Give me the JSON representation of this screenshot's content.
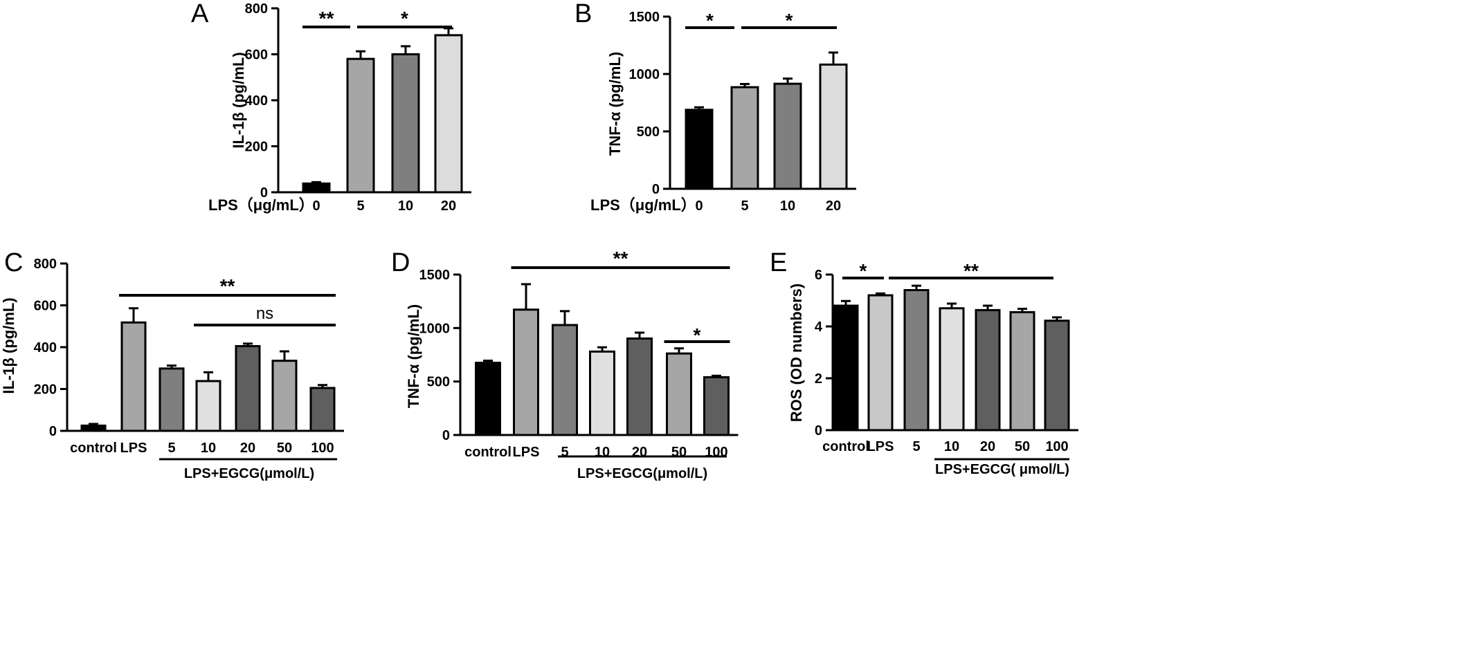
{
  "chart_data": [
    {
      "panel": "A",
      "type": "bar",
      "categories": [
        "0",
        "5",
        "10",
        "20"
      ],
      "values": [
        38,
        580,
        600,
        683
      ],
      "errors": [
        6,
        33,
        35,
        30
      ],
      "colors": [
        "#000000",
        "#a6a6a6",
        "#7f7f7f",
        "#dcdcdc"
      ],
      "ylabel": "IL-1β (pg/mL)",
      "ylim": [
        0,
        800
      ],
      "yticks": [
        "0",
        "200",
        "400",
        "600",
        "800"
      ],
      "xtitle": "LPS（μg/mL）",
      "significance": [
        {
          "label": "**",
          "from": 0,
          "to": 1
        },
        {
          "label": "*",
          "from": 1,
          "to": 3
        }
      ]
    },
    {
      "panel": "B",
      "type": "bar",
      "categories": [
        "0",
        "5",
        "10",
        "20"
      ],
      "values": [
        688,
        885,
        915,
        1082
      ],
      "errors": [
        22,
        28,
        45,
        105
      ],
      "colors": [
        "#000000",
        "#a6a6a6",
        "#7f7f7f",
        "#dcdcdc"
      ],
      "ylabel": "TNF-α (pg/mL)",
      "ylim": [
        0,
        1500
      ],
      "yticks": [
        "0",
        "500",
        "1000",
        "1500"
      ],
      "xtitle": "LPS（μg/mL）",
      "significance": [
        {
          "label": "*",
          "from": 0,
          "to": 1
        },
        {
          "label": "*",
          "from": 1,
          "to": 3
        }
      ]
    },
    {
      "panel": "C",
      "type": "bar",
      "categories": [
        "control",
        "LPS",
        "5",
        "10",
        "20",
        "50",
        "100"
      ],
      "values": [
        25,
        518,
        298,
        238,
        405,
        335,
        205
      ],
      "errors": [
        8,
        68,
        14,
        42,
        12,
        45,
        14
      ],
      "colors": [
        "#000000",
        "#a6a6a6",
        "#7f7f7f",
        "#e0e0e0",
        "#5f5f5f",
        "#a6a6a6",
        "#5f5f5f"
      ],
      "ylabel": "IL-1β (pg/mL)",
      "ylim": [
        0,
        800
      ],
      "yticks": [
        "0",
        "200",
        "400",
        "600",
        "800"
      ],
      "group_label": "LPS+EGCG(μmol/L)",
      "significance": [
        {
          "label": "**",
          "from": 1,
          "to": 6
        },
        {
          "label": "ns",
          "from": 3,
          "to": 6
        }
      ]
    },
    {
      "panel": "D",
      "type": "bar",
      "categories": [
        "control",
        "LPS",
        "5",
        "10",
        "20",
        "50",
        "100"
      ],
      "values": [
        675,
        1172,
        1028,
        780,
        902,
        762,
        540
      ],
      "errors": [
        20,
        238,
        130,
        40,
        55,
        48,
        14
      ],
      "colors": [
        "#000000",
        "#a6a6a6",
        "#7f7f7f",
        "#e0e0e0",
        "#5f5f5f",
        "#a6a6a6",
        "#5f5f5f"
      ],
      "ylabel": "TNF-α (pg/mL)",
      "ylim": [
        0,
        1500
      ],
      "yticks": [
        "0",
        "500",
        "1000",
        "1500"
      ],
      "group_label": "LPS+EGCG(μmol/L)",
      "significance": [
        {
          "label": "**",
          "from": 1,
          "to": 6
        },
        {
          "label": "*",
          "from": 5,
          "to": 6
        }
      ]
    },
    {
      "panel": "E",
      "type": "bar",
      "categories": [
        "control",
        "LPS",
        "5",
        "10",
        "20",
        "50",
        "100"
      ],
      "values": [
        4.8,
        5.2,
        5.4,
        4.7,
        4.63,
        4.55,
        4.22
      ],
      "errors": [
        0.18,
        0.07,
        0.17,
        0.18,
        0.17,
        0.13,
        0.13
      ],
      "colors": [
        "#000000",
        "#c8c8c8",
        "#7f7f7f",
        "#e0e0e0",
        "#5f5f5f",
        "#a6a6a6",
        "#5f5f5f"
      ],
      "ylabel": "ROS (OD numbers)",
      "ylim": [
        0,
        6
      ],
      "yticks": [
        "0",
        "2",
        "4",
        "6"
      ],
      "group_label": "LPS+EGCG( μmol/L)",
      "significance": [
        {
          "label": "*",
          "from": 0,
          "to": 1
        },
        {
          "label": "**",
          "from": 1,
          "to": 6
        }
      ]
    }
  ]
}
